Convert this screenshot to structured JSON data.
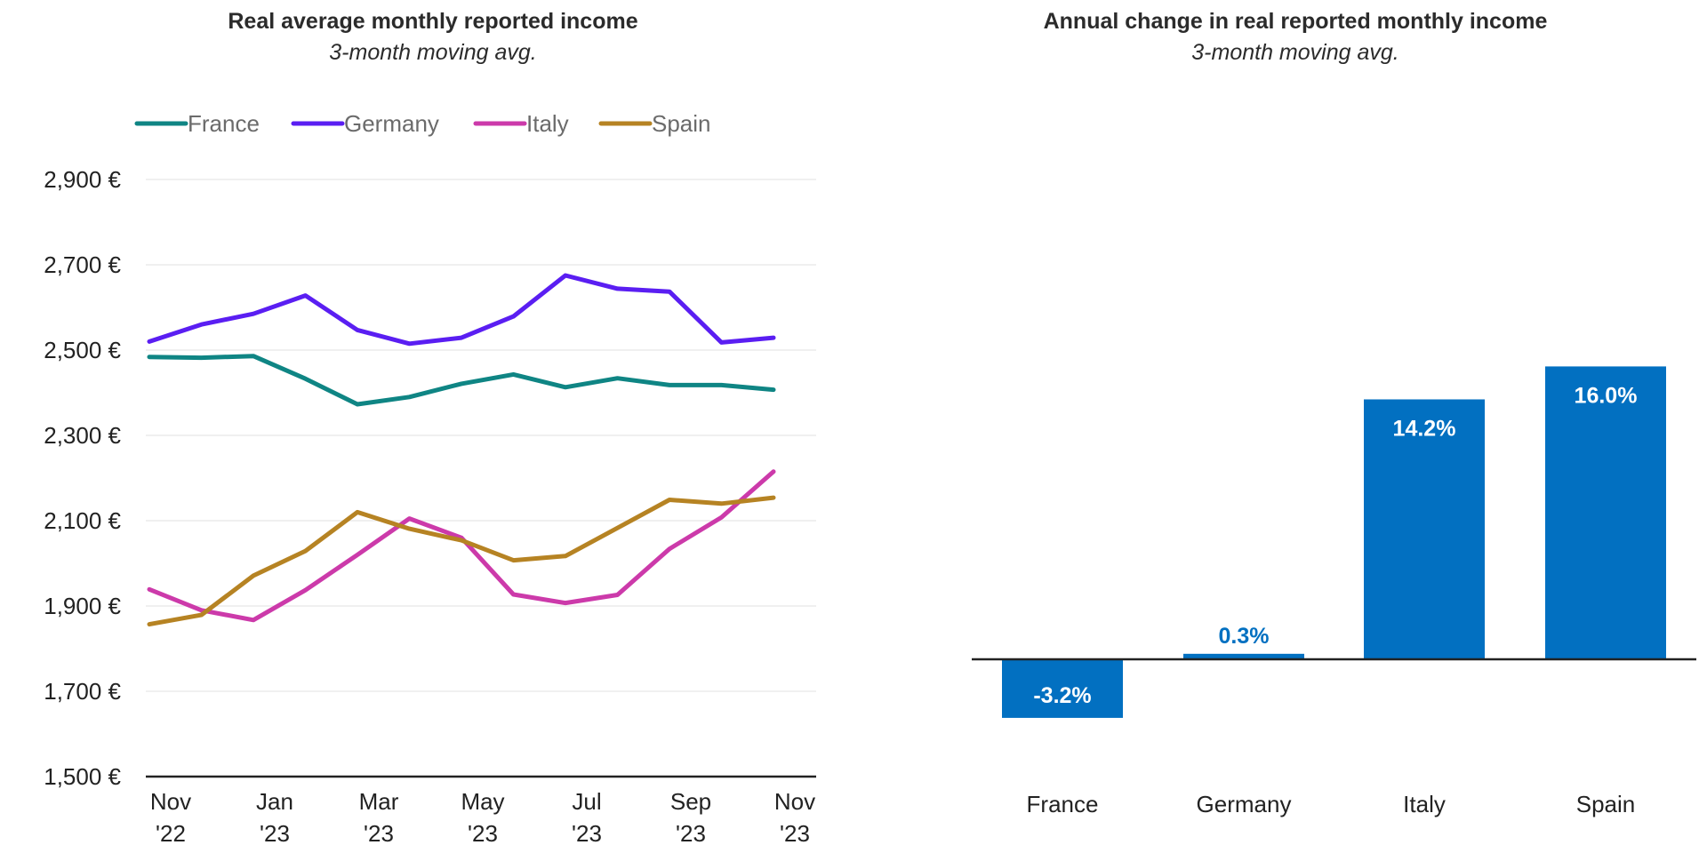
{
  "chart_data": [
    {
      "type": "line",
      "title": "Real average monthly reported income",
      "subtitle": "3-month moving avg.",
      "y_ticks": [
        "2,900 €",
        "2,700 €",
        "2,500 €",
        "2,300 €",
        "2,100 €",
        "1,900 €",
        "1,700 €",
        "1,500 €"
      ],
      "ylim": [
        1500,
        2900
      ],
      "x": [
        "2022-11",
        "2022-12",
        "2023-01",
        "2023-02",
        "2023-03",
        "2023-04",
        "2023-05",
        "2023-06",
        "2023-07",
        "2023-08",
        "2023-09",
        "2023-10",
        "2023-11"
      ],
      "x_ticks": [
        {
          "line1": "Nov",
          "line2": "'22"
        },
        {
          "line1": "Jan",
          "line2": "'23"
        },
        {
          "line1": "Mar",
          "line2": "'23"
        },
        {
          "line1": "May",
          "line2": "'23"
        },
        {
          "line1": "Jul",
          "line2": "'23"
        },
        {
          "line1": "Sep",
          "line2": "'23"
        },
        {
          "line1": "Nov",
          "line2": "'23"
        }
      ],
      "legend_position": "top-left",
      "grid": true,
      "series": [
        {
          "name": "France",
          "color": "#0f8584",
          "values": [
            2484,
            2482,
            2486,
            2433,
            2373,
            2390,
            2421,
            2443,
            2413,
            2434,
            2418,
            2418,
            2407
          ]
        },
        {
          "name": "Germany",
          "color": "#5a1ef2",
          "values": [
            2520,
            2560,
            2585,
            2628,
            2547,
            2515,
            2529,
            2579,
            2675,
            2644,
            2637,
            2518,
            2529
          ]
        },
        {
          "name": "Italy",
          "color": "#cc3aaa",
          "values": [
            1939,
            1890,
            1867,
            1937,
            2020,
            2105,
            2060,
            1927,
            1907,
            1926,
            2034,
            2108,
            2215
          ]
        },
        {
          "name": "Spain",
          "color": "#b68323",
          "values": [
            1857,
            1879,
            1971,
            2029,
            2120,
            2081,
            2054,
            2007,
            2017,
            2083,
            2149,
            2140,
            2154
          ]
        }
      ]
    },
    {
      "type": "bar",
      "title": "Annual change in real reported monthly income",
      "subtitle": "3-month moving avg.",
      "categories": [
        "France",
        "Germany",
        "Italy",
        "Spain"
      ],
      "values": [
        -3.2,
        0.3,
        14.2,
        16.0
      ],
      "labels": [
        "-3.2%",
        "0.3%",
        "14.2%",
        "16.0%"
      ],
      "ylim": [
        -5,
        17
      ],
      "color": "#0270c1",
      "grid": false
    }
  ]
}
